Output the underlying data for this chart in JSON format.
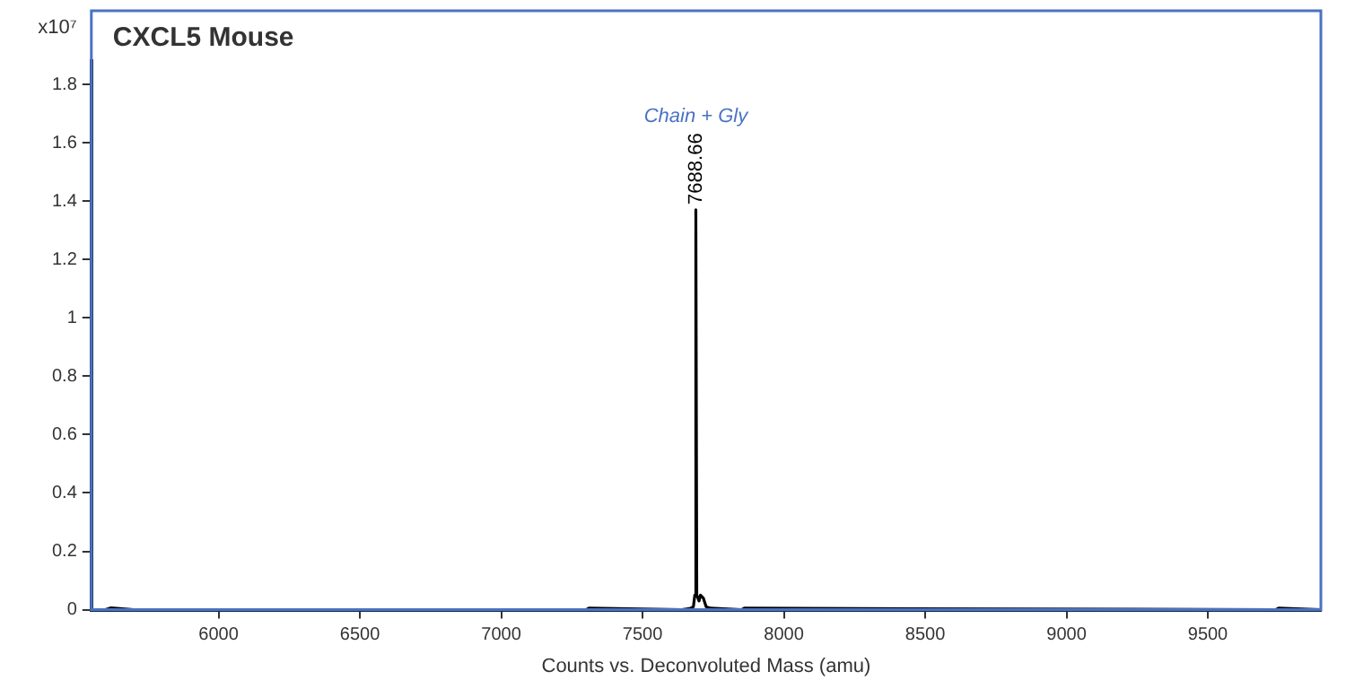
{
  "chart_data": {
    "type": "line",
    "title": "CXCL5 Mouse",
    "xlabel": "Counts vs. Deconvoluted Mass (amu)",
    "ylabel": "x10⁷",
    "xlim": [
      5550,
      9900
    ],
    "xticks": [
      6000,
      6500,
      7000,
      7500,
      8000,
      8500,
      9000,
      9500
    ],
    "ylim": [
      0,
      1.88
    ],
    "yticks": [
      0,
      0.2,
      0.4,
      0.6,
      0.8,
      1,
      1.2,
      1.4,
      1.6,
      1.8
    ],
    "grid": false,
    "legend": false,
    "marker": "none",
    "line_style": "solid",
    "series": [
      {
        "color": "#000000",
        "x": [
          5550,
          5600,
          5620,
          5700,
          7300,
          7310,
          7640,
          7670,
          7680,
          7685,
          7688.66,
          7692,
          7700,
          7705,
          7715,
          7725,
          7740,
          7850,
          7860,
          9740,
          9750,
          9900
        ],
        "values": [
          0,
          0,
          0.006,
          0,
          0,
          0.005,
          0,
          0.005,
          0.01,
          0.05,
          1.37,
          0.05,
          0.03,
          0.05,
          0.04,
          0.01,
          0.005,
          0,
          0.005,
          0,
          0.005,
          0
        ]
      }
    ],
    "annotations": [
      {
        "text": "7688.66",
        "x": 7688.66,
        "y": 1.37
      },
      "Chain + Gly"
    ]
  }
}
